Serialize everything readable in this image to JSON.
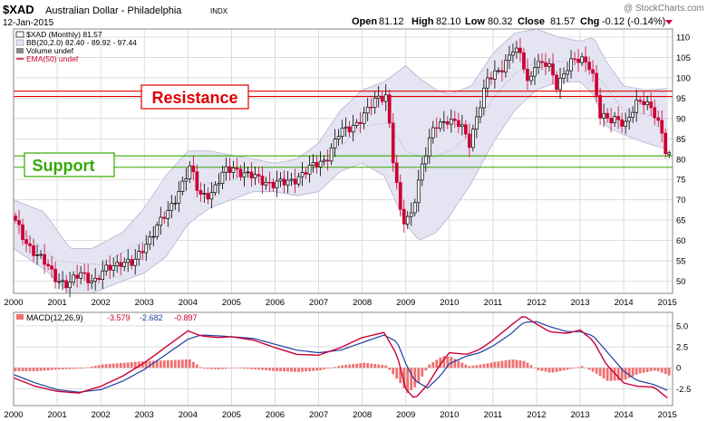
{
  "header": {
    "symbol": "$XAD",
    "name": "Australian Dollar - Philadelphia",
    "exchange": "INDX",
    "date": "12-Jan-2015",
    "watermark": "@ StockCharts.com",
    "ohlc": {
      "open_label": "Open",
      "open": "81.12",
      "high_label": "High",
      "high": "82.10",
      "low_label": "Low",
      "low": "80.32",
      "close_label": "Close",
      "close": "81.57",
      "chg_label": "Chg",
      "chg": "-0.12 (-0.14%)"
    }
  },
  "legend": {
    "series": "$XAD (Monthly) 81.57",
    "bb": "BB(20,2.0) 82.40 - 89.92 - 97.44",
    "volume": "Volume undef",
    "ema": "EMA(50) undef"
  },
  "annotations": {
    "resistance": "Resistance",
    "support": "Support"
  },
  "macd_legend": {
    "label": "MACD(12,26,9)",
    "macd": "-3.579",
    "signal": "-2.682",
    "hist": "-0.897"
  },
  "colors": {
    "up": "#000000",
    "down": "#cc0033",
    "band_fill": "#e4e4f2",
    "band_edge": "#b4b4d2",
    "resistance": "#e00000",
    "support": "#33aa00",
    "macd_line": "#cc0033",
    "signal_line": "#1f3fa3",
    "hist": "#f07070"
  },
  "chart_data": [
    {
      "type": "candlestick",
      "title": "Australian Dollar - Philadelphia",
      "series_name": "$XAD (Monthly)",
      "x_ticks": [
        "2000",
        "2001",
        "2002",
        "2003",
        "2004",
        "2005",
        "2006",
        "2007",
        "2008",
        "2009",
        "2010",
        "2011",
        "2012",
        "2013",
        "2014",
        "2015"
      ],
      "y_ticks": [
        50,
        55,
        60,
        65,
        70,
        75,
        80,
        85,
        90,
        95,
        100,
        105,
        110
      ],
      "ylim": [
        47,
        112
      ],
      "grid": true,
      "resistance_levels": [
        95.4,
        96.7
      ],
      "support_levels": [
        78.0,
        80.8
      ],
      "price_path": [
        [
          2000.0,
          66
        ],
        [
          2000.3,
          60
        ],
        [
          2000.7,
          55
        ],
        [
          2001.0,
          51
        ],
        [
          2001.3,
          49
        ],
        [
          2001.6,
          52
        ],
        [
          2001.9,
          50
        ],
        [
          2002.2,
          53
        ],
        [
          2002.5,
          55
        ],
        [
          2002.8,
          54
        ],
        [
          2003.0,
          58
        ],
        [
          2003.3,
          63
        ],
        [
          2003.6,
          67
        ],
        [
          2003.9,
          74
        ],
        [
          2004.1,
          78
        ],
        [
          2004.3,
          71
        ],
        [
          2004.6,
          72
        ],
        [
          2004.9,
          77
        ],
        [
          2005.1,
          78
        ],
        [
          2005.4,
          76
        ],
        [
          2005.7,
          75
        ],
        [
          2006.0,
          74
        ],
        [
          2006.3,
          74
        ],
        [
          2006.6,
          76
        ],
        [
          2006.9,
          78
        ],
        [
          2007.2,
          80
        ],
        [
          2007.5,
          86
        ],
        [
          2007.8,
          88
        ],
        [
          2008.1,
          91
        ],
        [
          2008.4,
          95
        ],
        [
          2008.6,
          96
        ],
        [
          2008.75,
          80
        ],
        [
          2008.95,
          64
        ],
        [
          2009.15,
          66
        ],
        [
          2009.4,
          78
        ],
        [
          2009.7,
          88
        ],
        [
          2010.0,
          90
        ],
        [
          2010.3,
          88
        ],
        [
          2010.5,
          84
        ],
        [
          2010.7,
          92
        ],
        [
          2010.9,
          99
        ],
        [
          2011.2,
          102
        ],
        [
          2011.5,
          107
        ],
        [
          2011.7,
          105
        ],
        [
          2011.85,
          98
        ],
        [
          2012.0,
          104
        ],
        [
          2012.3,
          103
        ],
        [
          2012.5,
          98
        ],
        [
          2012.8,
          104
        ],
        [
          2013.1,
          104
        ],
        [
          2013.3,
          103
        ],
        [
          2013.5,
          91
        ],
        [
          2013.7,
          89
        ],
        [
          2013.9,
          90
        ],
        [
          2014.1,
          89
        ],
        [
          2014.3,
          93
        ],
        [
          2014.5,
          94
        ],
        [
          2014.7,
          93
        ],
        [
          2014.9,
          87
        ],
        [
          2015.0,
          81.6
        ]
      ],
      "last": {
        "open": 81.12,
        "high": 82.1,
        "low": 80.32,
        "close": 81.57
      },
      "bollinger": {
        "period": 20,
        "stddev": 2.0,
        "last": {
          "lower": 82.4,
          "middle": 89.92,
          "upper": 97.44
        },
        "upper_path": [
          [
            2000.0,
            70
          ],
          [
            2000.7,
            67
          ],
          [
            2001.3,
            58
          ],
          [
            2001.8,
            58
          ],
          [
            2002.5,
            62
          ],
          [
            2003.0,
            68
          ],
          [
            2003.5,
            76
          ],
          [
            2004.0,
            82
          ],
          [
            2004.5,
            82
          ],
          [
            2005.0,
            81
          ],
          [
            2005.5,
            80
          ],
          [
            2006.0,
            79
          ],
          [
            2006.5,
            80
          ],
          [
            2007.0,
            84
          ],
          [
            2007.5,
            92
          ],
          [
            2008.0,
            97
          ],
          [
            2008.5,
            99
          ],
          [
            2009.0,
            103
          ],
          [
            2009.3,
            100
          ],
          [
            2009.7,
            97
          ],
          [
            2010.0,
            96
          ],
          [
            2010.5,
            98
          ],
          [
            2011.0,
            106
          ],
          [
            2011.5,
            111
          ],
          [
            2012.0,
            112
          ],
          [
            2012.5,
            110
          ],
          [
            2013.0,
            109
          ],
          [
            2013.3,
            110
          ],
          [
            2013.6,
            104
          ],
          [
            2014.0,
            98
          ],
          [
            2014.5,
            97
          ],
          [
            2015.0,
            97.4
          ]
        ],
        "lower_path": [
          [
            2000.0,
            58
          ],
          [
            2000.7,
            53
          ],
          [
            2001.3,
            47
          ],
          [
            2001.8,
            47
          ],
          [
            2002.5,
            50
          ],
          [
            2003.0,
            52
          ],
          [
            2003.5,
            56
          ],
          [
            2004.0,
            64
          ],
          [
            2004.5,
            68
          ],
          [
            2005.0,
            70
          ],
          [
            2005.5,
            72
          ],
          [
            2006.0,
            72
          ],
          [
            2006.5,
            71
          ],
          [
            2007.0,
            72
          ],
          [
            2007.5,
            77
          ],
          [
            2008.0,
            79
          ],
          [
            2008.5,
            76
          ],
          [
            2009.0,
            64
          ],
          [
            2009.3,
            60
          ],
          [
            2009.7,
            62
          ],
          [
            2010.0,
            66
          ],
          [
            2010.5,
            74
          ],
          [
            2011.0,
            84
          ],
          [
            2011.5,
            92
          ],
          [
            2012.0,
            97
          ],
          [
            2012.5,
            99
          ],
          [
            2013.0,
            99
          ],
          [
            2013.3,
            96
          ],
          [
            2013.6,
            88
          ],
          [
            2014.0,
            86
          ],
          [
            2014.5,
            84
          ],
          [
            2015.0,
            82.4
          ]
        ],
        "middle_path": [
          [
            2000.0,
            64
          ],
          [
            2001.0,
            55
          ],
          [
            2002.0,
            54
          ],
          [
            2003.0,
            60
          ],
          [
            2004.0,
            73
          ],
          [
            2005.0,
            75
          ],
          [
            2006.0,
            75
          ],
          [
            2007.0,
            78
          ],
          [
            2008.0,
            88
          ],
          [
            2008.6,
            89
          ],
          [
            2009.0,
            82
          ],
          [
            2009.5,
            80
          ],
          [
            2010.0,
            82
          ],
          [
            2010.5,
            86
          ],
          [
            2011.0,
            95
          ],
          [
            2011.5,
            101
          ],
          [
            2012.0,
            104
          ],
          [
            2013.0,
            104
          ],
          [
            2013.5,
            99
          ],
          [
            2014.0,
            92
          ],
          [
            2015.0,
            89.9
          ]
        ]
      }
    },
    {
      "type": "line",
      "title": "MACD(12,26,9)",
      "y_ticks": [
        -2.5,
        0,
        2.5,
        5.0
      ],
      "ylim": [
        -4.5,
        6.6
      ],
      "last": {
        "macd": -3.579,
        "signal": -2.682,
        "histogram": -0.897
      },
      "series": [
        {
          "name": "MACD",
          "values": [
            [
              2000.0,
              -1.2
            ],
            [
              2000.5,
              -2.2
            ],
            [
              2001.0,
              -2.8
            ],
            [
              2001.5,
              -3.0
            ],
            [
              2002.0,
              -2.2
            ],
            [
              2002.5,
              -1.0
            ],
            [
              2003.0,
              0.6
            ],
            [
              2003.5,
              2.5
            ],
            [
              2004.0,
              4.4
            ],
            [
              2004.3,
              3.8
            ],
            [
              2004.7,
              3.6
            ],
            [
              2005.0,
              3.7
            ],
            [
              2005.5,
              3.3
            ],
            [
              2006.0,
              2.4
            ],
            [
              2006.5,
              1.6
            ],
            [
              2007.0,
              1.5
            ],
            [
              2007.5,
              2.4
            ],
            [
              2008.0,
              3.6
            ],
            [
              2008.5,
              4.2
            ],
            [
              2008.8,
              1.5
            ],
            [
              2009.0,
              -2.5
            ],
            [
              2009.2,
              -3.7
            ],
            [
              2009.5,
              -2.0
            ],
            [
              2009.8,
              0.5
            ],
            [
              2010.0,
              1.8
            ],
            [
              2010.4,
              1.6
            ],
            [
              2010.7,
              2.2
            ],
            [
              2011.0,
              3.3
            ],
            [
              2011.4,
              5.0
            ],
            [
              2011.7,
              6.2
            ],
            [
              2012.0,
              5.2
            ],
            [
              2012.3,
              4.3
            ],
            [
              2012.7,
              4.1
            ],
            [
              2013.0,
              4.5
            ],
            [
              2013.3,
              3.2
            ],
            [
              2013.6,
              0.4
            ],
            [
              2014.0,
              -1.8
            ],
            [
              2014.3,
              -2.2
            ],
            [
              2014.7,
              -2.3
            ],
            [
              2015.0,
              -3.579
            ]
          ]
        },
        {
          "name": "Signal",
          "values": [
            [
              2000.0,
              -0.8
            ],
            [
              2000.5,
              -1.8
            ],
            [
              2001.0,
              -2.6
            ],
            [
              2001.5,
              -2.9
            ],
            [
              2002.0,
              -2.6
            ],
            [
              2002.5,
              -1.6
            ],
            [
              2003.0,
              -0.2
            ],
            [
              2003.5,
              1.6
            ],
            [
              2004.0,
              3.4
            ],
            [
              2004.3,
              3.9
            ],
            [
              2004.7,
              3.8
            ],
            [
              2005.0,
              3.7
            ],
            [
              2005.5,
              3.5
            ],
            [
              2006.0,
              2.8
            ],
            [
              2006.5,
              2.1
            ],
            [
              2007.0,
              1.8
            ],
            [
              2007.5,
              2.1
            ],
            [
              2008.0,
              3.0
            ],
            [
              2008.5,
              3.9
            ],
            [
              2008.8,
              3.1
            ],
            [
              2009.0,
              0.5
            ],
            [
              2009.2,
              -1.5
            ],
            [
              2009.5,
              -2.4
            ],
            [
              2009.8,
              -0.9
            ],
            [
              2010.0,
              0.5
            ],
            [
              2010.4,
              1.4
            ],
            [
              2010.7,
              1.8
            ],
            [
              2011.0,
              2.6
            ],
            [
              2011.4,
              4.0
            ],
            [
              2011.7,
              5.4
            ],
            [
              2012.0,
              5.5
            ],
            [
              2012.3,
              4.9
            ],
            [
              2012.7,
              4.3
            ],
            [
              2013.0,
              4.3
            ],
            [
              2013.3,
              3.8
            ],
            [
              2013.6,
              2.0
            ],
            [
              2014.0,
              -0.4
            ],
            [
              2014.3,
              -1.5
            ],
            [
              2014.7,
              -2.0
            ],
            [
              2015.0,
              -2.682
            ]
          ]
        }
      ]
    }
  ]
}
